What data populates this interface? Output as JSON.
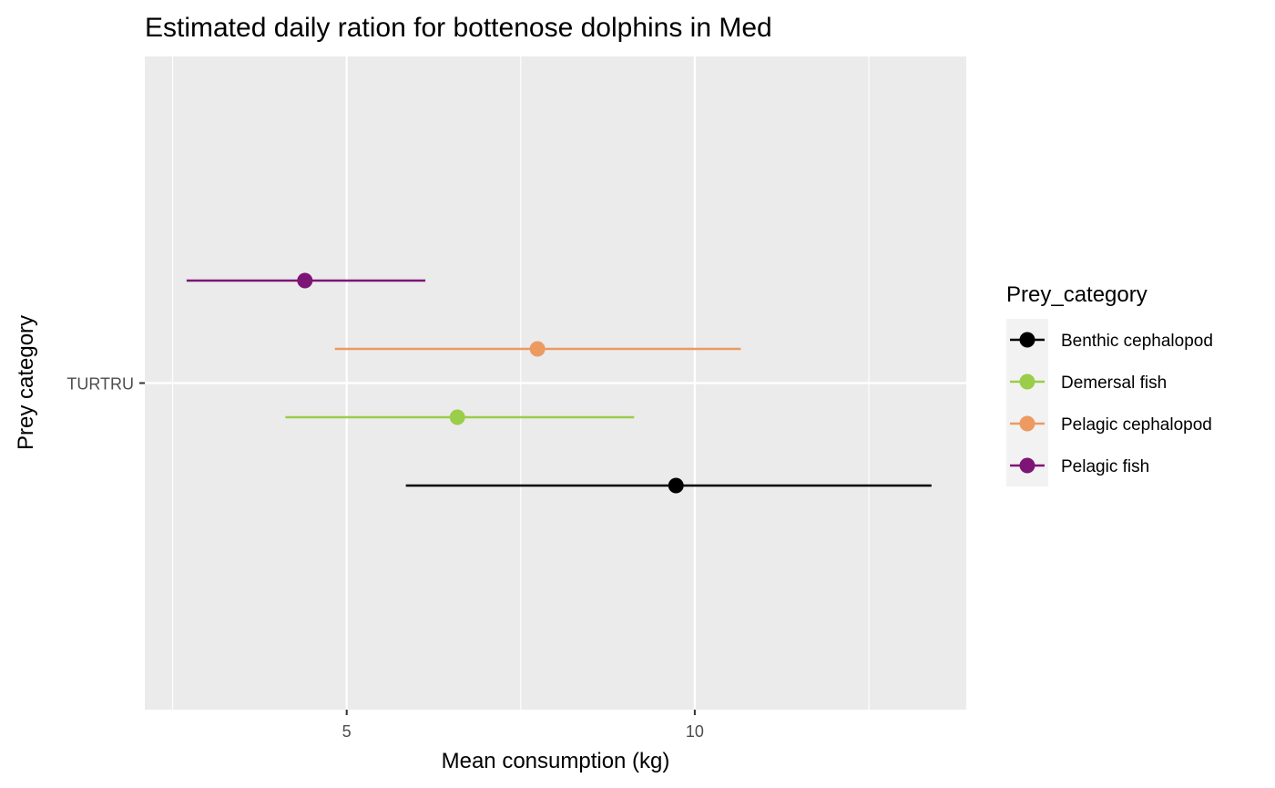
{
  "chart_data": {
    "type": "errorbar",
    "title": "Estimated daily ration for bottenose dolphins in Med",
    "xlabel": "Mean consumption (kg)",
    "ylabel": "Prey category",
    "xlim": [
      2.1,
      13.9
    ],
    "x_ticks": [
      5,
      10
    ],
    "y_categories": [
      "TURTRU"
    ],
    "grid": true,
    "legend": {
      "title": "Prey_category",
      "placement": "right"
    },
    "series": [
      {
        "name": "Benthic cephalopod",
        "color": "#000000",
        "category": "TURTRU",
        "mean": 9.73,
        "low": 5.85,
        "high": 13.4
      },
      {
        "name": "Demersal fish",
        "color": "#9acd4a",
        "category": "TURTRU",
        "mean": 6.59,
        "low": 4.12,
        "high": 9.13
      },
      {
        "name": "Pelagic cephalopod",
        "color": "#ec9a60",
        "category": "TURTRU",
        "mean": 7.74,
        "low": 4.83,
        "high": 10.66
      },
      {
        "name": "Pelagic fish",
        "color": "#7d1577",
        "category": "TURTRU",
        "mean": 4.4,
        "low": 2.7,
        "high": 6.13
      }
    ]
  }
}
